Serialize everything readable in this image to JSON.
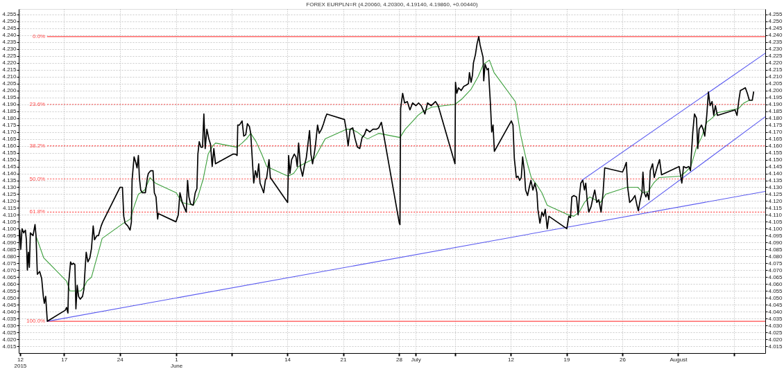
{
  "chart_data": {
    "type": "line",
    "title": "FOREX EURPLN=R (4.20060, 4.20300, 4.19140, 4.19860, +0.00440)",
    "xlim": [
      "2015-05-12T06:00",
      "2015-08-13T20:00"
    ],
    "ylim": [
      4.01,
      4.259
    ],
    "y2lim": [
      4.01,
      4.259
    ],
    "xticks": [
      {
        "value": "2015-05-12T10:00",
        "label": "12\n2015"
      },
      {
        "value": "2015-05-17T22:00",
        "label": "17"
      },
      {
        "value": "2015-05-24T22:00",
        "label": "24"
      },
      {
        "value": "2015-06-01T00:00",
        "label": "1\nJune"
      },
      {
        "value": "2015-06-07T22:00",
        "label": null
      },
      {
        "value": "2015-06-14T22:00",
        "label": "14"
      },
      {
        "value": "2015-06-21T22:00",
        "label": "21"
      },
      {
        "value": "2015-06-28T22:00",
        "label": "28"
      },
      {
        "value": "2015-07",
        "label": "July"
      },
      {
        "value": "2015-07-05T22:00",
        "label": null
      },
      {
        "value": "2015-07-12T22:00",
        "label": "12"
      },
      {
        "value": "2015-07-19T22:00",
        "label": "19"
      },
      {
        "value": "2015-07-26T22:00",
        "label": "26"
      },
      {
        "value": "2015-08-02T22:00",
        "label": "August"
      },
      {
        "value": "2015-08-09T22:00",
        "label": null
      }
    ],
    "yticks": [
      4.015,
      {
        "value": 4.02,
        "label": "4.020"
      },
      4.025,
      {
        "value": 4.03,
        "label": "4.030"
      },
      4.035,
      {
        "value": 4.04,
        "label": "4.040"
      },
      4.045,
      {
        "value": 4.05,
        "label": "4.050"
      },
      4.055,
      {
        "value": 4.06,
        "label": "4.060"
      },
      4.065,
      {
        "value": 4.07,
        "label": "4.070"
      },
      4.075,
      {
        "value": 4.08,
        "label": "4.080"
      },
      4.085,
      {
        "value": 4.09,
        "label": "4.090"
      },
      4.095,
      {
        "value": 4.1,
        "label": "4.100"
      },
      4.105,
      {
        "value": 4.11,
        "label": "4.110"
      },
      4.115,
      {
        "value": 4.12,
        "label": "4.120"
      },
      4.125,
      {
        "value": 4.13,
        "label": "4.130"
      },
      4.135,
      {
        "value": 4.14,
        "label": "4.140"
      },
      4.145,
      {
        "value": 4.15,
        "label": "4.150"
      },
      4.155,
      {
        "value": 4.16,
        "label": "4.160"
      },
      4.165,
      {
        "value": 4.17,
        "label": "4.170"
      },
      4.175,
      {
        "value": 4.18,
        "label": "4.180"
      },
      4.185,
      {
        "value": 4.19,
        "label": "4.190"
      },
      4.195,
      {
        "value": 4.2,
        "label": "4.200"
      },
      4.205,
      {
        "value": 4.21,
        "label": "4.210"
      },
      4.215,
      {
        "value": 4.22,
        "label": "4.220"
      },
      4.225,
      {
        "value": 4.23,
        "label": "4.230"
      },
      4.235,
      {
        "value": 4.24,
        "label": "4.240"
      },
      4.245,
      {
        "value": 4.25,
        "label": "4.250"
      },
      4.255
    ],
    "y2ticks": [
      4.015,
      {
        "value": 4.02,
        "label": "4.020"
      },
      4.025,
      {
        "value": 4.03,
        "label": "4.030"
      },
      4.035,
      {
        "value": 4.04,
        "label": "4.040"
      },
      4.045,
      {
        "value": 4.05,
        "label": "4.050"
      },
      4.055,
      {
        "value": 4.06,
        "label": "4.060"
      },
      4.065,
      {
        "value": 4.07,
        "label": "4.070"
      },
      4.075,
      {
        "value": 4.08,
        "label": "4.080"
      },
      4.085,
      {
        "value": 4.09,
        "label": "4.090"
      },
      4.095,
      {
        "value": 4.1,
        "label": "4.100"
      },
      4.105,
      {
        "value": 4.11,
        "label": "4.110"
      },
      4.115,
      {
        "value": 4.12,
        "label": "4.120"
      },
      4.125,
      {
        "value": 4.13,
        "label": "4.130"
      },
      4.135,
      {
        "value": 4.14,
        "label": "4.140"
      },
      4.145,
      {
        "value": 4.15,
        "label": "4.150"
      },
      4.155,
      {
        "value": 4.16,
        "label": "4.160"
      },
      4.165,
      {
        "value": 4.17,
        "label": "4.170"
      },
      4.175,
      {
        "value": 4.18,
        "label": "4.180"
      },
      4.185,
      {
        "value": 4.19,
        "label": "4.190"
      },
      4.195,
      {
        "value": 4.2,
        "label": "4.200"
      },
      4.205,
      {
        "value": 4.21,
        "label": "4.210"
      },
      4.215,
      {
        "value": 4.22,
        "label": "4.220"
      },
      4.225,
      {
        "value": 4.23,
        "label": "4.230"
      },
      4.235,
      {
        "value": 4.24,
        "label": "4.240"
      },
      4.245,
      {
        "value": 4.25,
        "label": "4.250"
      },
      4.255
    ],
    "grid": true,
    "series": [
      {
        "name": "0.0%",
        "color": "#ff4a4a",
        "line_style": "solid",
        "x": [
          "2015-05-15T20:00",
          "2015-08-13T20:00"
        ],
        "values": [
          4.239,
          4.239
        ]
      },
      {
        "name": "23.6%",
        "color": "#ff4a4a",
        "line_style": "dotted",
        "x": [
          "2015-05-15T20:00",
          "2015-08-13T20:00"
        ],
        "values": [
          4.19,
          4.19
        ]
      },
      {
        "name": "38.2%",
        "color": "#ff4a4a",
        "line_style": "dotted",
        "x": [
          "2015-05-15T20:00",
          "2015-08-13T20:00"
        ],
        "values": [
          4.16,
          4.16
        ]
      },
      {
        "name": "50.0%",
        "color": "#ff4a4a",
        "line_style": "dotted",
        "x": [
          "2015-05-15T20:00",
          "2015-08-13T20:00"
        ],
        "values": [
          4.136,
          4.136
        ]
      },
      {
        "name": "61.8%",
        "color": "#ff4a4a",
        "line_style": "dotted",
        "x": [
          "2015-05-15T20:00",
          "2015-08-13T20:00"
        ],
        "values": [
          4.112,
          4.112
        ]
      },
      {
        "name": "100.0%",
        "color": "#ff4a4a",
        "line_style": "solid",
        "x": [
          "2015-05-15T20:00",
          "2015-08-13T20:00"
        ],
        "values": [
          4.033,
          4.033
        ]
      },
      {
        "color": "#3a9e3a",
        "x": [
          "2015-05-14T11:00",
          "2015-05-15T09:00",
          "2015-05-18T06:00",
          "2015-05-18T16:00",
          "2015-05-19T09:00",
          "2015-05-20T01:00",
          "2015-05-20T11:00",
          "2015-05-20T19:00",
          "2015-05-21T09:00",
          "2015-05-22T01:00",
          "2015-05-22T17:00",
          "2015-05-25T09:00",
          "2015-05-26T06:00",
          "2015-05-26T17:00",
          "2015-05-27T06:00",
          "2015-05-28T01:00",
          "2015-05-28T17:00",
          "2015-05-29T09:00",
          "2015-06-01T00:00",
          "2015-06-01T17:00",
          "2015-06-02T09:00",
          "2015-06-03T03:00",
          "2015-06-03T17:00",
          "2015-06-04T09:00",
          "2015-06-05T00:00",
          "2015-06-05T14:00",
          "2015-06-05T22:00",
          "2015-06-08T14:00",
          "2015-06-09T06:00",
          "2015-06-09T19:00",
          "2015-06-10T08:00",
          "2015-06-11T00:00",
          "2015-06-11T17:00",
          "2015-06-12T08:00",
          "2015-06-15T00:00",
          "2015-06-15T17:00",
          "2015-06-16T08:00",
          "2015-06-17T00:00",
          "2015-06-17T17:00",
          "2015-06-18T08:00",
          "2015-06-19T00:00",
          "2015-06-19T16:00",
          "2015-06-22T08:00",
          "2015-06-23T00:00",
          "2015-06-23T16:00",
          "2015-06-24T08:00",
          "2015-06-25T00:00",
          "2015-06-25T16:00",
          "2015-06-26T09:00",
          "2015-06-29T01:00",
          "2015-06-29T17:00",
          "2015-06-30T20:00",
          "2015-07-01T07:00",
          "2015-07-01T23:00",
          "2015-07-03T01:00",
          "2015-07-05T22:30",
          "2015-07-06T20:00",
          "2015-07-07T23:00",
          "2015-07-08T20:00",
          "2015-07-09T12:00",
          "2015-07-10T06:00",
          "2015-07-10T20:00",
          "2015-07-13T12:00",
          "2015-07-14T04:00",
          "2015-07-14T20:00",
          "2015-07-15T12:00",
          "2015-07-16T04:00",
          "2015-07-16T20:00",
          "2015-07-17T12:00",
          "2015-07-20T04:00",
          "2015-07-20T20:00",
          "2015-07-21T12:00",
          "2015-07-22T04:00",
          "2015-07-22T20:00",
          "2015-07-23T12:00",
          "2015-07-24T04:00",
          "2015-07-24T20:00",
          "2015-07-27T12:00",
          "2015-07-28T04:00",
          "2015-07-28T20:00",
          "2015-07-29T12:00",
          "2015-07-30T04:00",
          "2015-07-30T20:00",
          "2015-07-31T12:00",
          "2015-08-03T04:00",
          "2015-08-03T20:00",
          "2015-08-04T12:00",
          "2015-08-05T04:00",
          "2015-08-05T20:00",
          "2015-08-06T12:00",
          "2015-08-07T04:00",
          "2015-08-07T20:00",
          "2015-08-10T12:00",
          "2015-08-11T04:00",
          "2015-08-11T20:00",
          "2015-08-12T06:00"
        ],
        "values": [
          4.094,
          4.079,
          4.062,
          4.055,
          4.055,
          4.055,
          4.058,
          4.062,
          4.065,
          4.079,
          4.093,
          4.104,
          4.107,
          4.116,
          4.125,
          4.128,
          4.137,
          4.133,
          4.126,
          4.119,
          4.118,
          4.117,
          4.123,
          4.136,
          4.154,
          4.16,
          4.162,
          4.159,
          4.162,
          4.165,
          4.169,
          4.163,
          4.154,
          4.145,
          4.138,
          4.14,
          4.145,
          4.147,
          4.149,
          4.151,
          4.158,
          4.165,
          4.172,
          4.172,
          4.17,
          4.167,
          4.165,
          4.167,
          4.169,
          4.166,
          4.172,
          4.179,
          4.182,
          4.185,
          4.188,
          4.19,
          4.194,
          4.201,
          4.21,
          4.219,
          4.222,
          4.213,
          4.192,
          4.168,
          4.151,
          4.137,
          4.132,
          4.126,
          4.117,
          4.11,
          4.109,
          4.112,
          4.119,
          4.123,
          4.121,
          4.119,
          4.125,
          4.13,
          4.13,
          4.13,
          4.126,
          4.127,
          4.133,
          4.137,
          4.138,
          4.141,
          4.145,
          4.158,
          4.166,
          4.177,
          4.18,
          4.184,
          4.187,
          4.191,
          4.193,
          4.193
        ]
      },
      {
        "color": "#5a5af0",
        "x": [
          "2015-05-15T20:00",
          "2015-08-13T20:00"
        ],
        "values": [
          4.033,
          4.127
        ]
      },
      {
        "color": "#5a5af0",
        "x": [
          "2015-07-21T20:00",
          "2015-08-13T20:00"
        ],
        "values": [
          4.135,
          4.227
        ]
      },
      {
        "color": "#5a5af0",
        "x": [
          "2015-07-28T22:00",
          "2015-08-13T20:00"
        ],
        "values": [
          4.113,
          4.181
        ]
      },
      {
        "color": "#000000",
        "x": [
          "2015-05-12T07:00",
          "2015-05-12T09:00",
          "2015-05-12T12:00",
          "2015-05-12T16:00",
          "2015-05-12T21:00",
          "2015-05-13T02:00",
          "2015-05-13T05:00",
          "2015-05-13T08:00",
          "2015-05-13T11:00",
          "2015-05-13T14:00",
          "2015-05-13T17:00",
          "2015-05-14T01:00",
          "2015-05-14T07:00",
          "2015-05-14T10:00",
          "2015-05-14T14:00",
          "2015-05-14T21:00",
          "2015-05-15T03:00",
          "2015-05-15T08:00",
          "2015-05-15T11:00",
          "2015-05-15T15:00",
          "2015-05-15T20:00",
          "2015-05-18T02:00",
          "2015-05-18T06:00",
          "2015-05-18T10:00",
          "2015-05-18T12:00",
          "2015-05-18T18:00",
          "2015-05-18T22:00",
          "2015-05-19T02:00",
          "2015-05-19T07:00",
          "2015-05-19T10:00",
          "2015-05-19T14:00",
          "2015-05-19T18:00",
          "2015-05-19T23:00",
          "2015-05-20T06:00",
          "2015-05-20T10:00",
          "2015-05-20T14:00",
          "2015-05-20T17:00",
          "2015-05-20T22:00",
          "2015-05-21T04:00",
          "2015-05-21T09:00",
          "2015-05-21T14:00",
          "2015-05-21T18:00",
          "2015-05-22T01:00",
          "2015-05-22T06:00",
          "2015-05-22T14:00",
          "2015-05-22T19:00",
          "2015-05-24T23:00",
          "2015-05-25T06:00",
          "2015-05-25T10:00",
          "2015-05-25T14:00",
          "2015-05-25T22:00",
          "2015-05-26T05:00",
          "2015-05-26T09:00",
          "2015-05-26T11:00",
          "2015-05-26T17:00",
          "2015-05-26T22:00",
          "2015-05-27T02:00",
          "2015-05-27T06:00",
          "2015-05-27T09:00",
          "2015-05-27T13:00",
          "2015-05-27T18:00",
          "2015-05-28T03:00",
          "2015-05-28T09:00",
          "2015-05-28T12:00",
          "2015-05-28T19:00",
          "2015-05-29T02:00",
          "2015-05-29T06:00",
          "2015-05-29T11:00",
          "2015-05-29T16:00",
          "2015-05-29T18:00",
          "2015-05-31T23:00",
          "2015-06-01T06:00",
          "2015-06-01T11:00",
          "2015-06-01T18:00",
          "2015-06-01T23:00",
          "2015-06-02T06:00",
          "2015-06-02T10:00",
          "2015-06-02T14:00",
          "2015-06-02T19:00",
          "2015-06-03T03:00",
          "2015-06-03T09:00",
          "2015-06-03T14:00",
          "2015-06-03T17:00",
          "2015-06-03T21:00",
          "2015-06-04T02:00",
          "2015-06-04T07:00",
          "2015-06-04T11:00",
          "2015-06-04T15:00",
          "2015-06-04T20:00",
          "2015-06-05T02:00",
          "2015-06-05T07:00",
          "2015-06-05T12:00",
          "2015-06-05T17:00",
          "2015-06-05T22:00",
          "2015-06-08T03:00",
          "2015-06-08T10:00",
          "2015-06-08T15:00",
          "2015-06-08T17:00",
          "2015-06-08T22:00",
          "2015-06-09T06:00",
          "2015-06-09T11:00",
          "2015-06-09T17:00",
          "2015-06-09T22:00",
          "2015-06-10T04:00",
          "2015-06-10T08:00",
          "2015-06-10T14:00",
          "2015-06-10T17:00",
          "2015-06-10T22:00",
          "2015-06-11T03:00",
          "2015-06-11T08:00",
          "2015-06-11T12:00",
          "2015-06-11T17:00",
          "2015-06-11T23:00",
          "2015-06-12T04:00",
          "2015-06-12T08:00",
          "2015-06-12T15:00",
          "2015-06-12T19:00",
          "2015-06-14T23:00",
          "2015-06-15T02:00",
          "2015-06-15T06:00",
          "2015-06-15T11:00",
          "2015-06-15T19:00",
          "2015-06-16T00:00",
          "2015-06-16T04:00",
          "2015-06-16T08:00",
          "2015-06-16T14:00",
          "2015-06-16T20:00",
          "2015-06-17T01:00",
          "2015-06-17T07:00",
          "2015-06-17T12:00",
          "2015-06-17T17:00",
          "2015-06-17T21:00",
          "2015-06-18T02:00",
          "2015-06-18T07:00",
          "2015-06-18T11:00",
          "2015-06-18T17:00",
          "2015-06-18T22:00",
          "2015-06-19T05:00",
          "2015-06-19T11:00",
          "2015-06-19T16:00",
          "2015-06-19T21:00",
          "2015-06-22T02:00",
          "2015-06-22T07:00",
          "2015-06-22T13:00",
          "2015-06-22T19:00",
          "2015-06-23T03:00",
          "2015-06-23T10:00",
          "2015-06-23T17:00",
          "2015-06-24T00:00",
          "2015-06-24T07:00",
          "2015-06-24T14:00",
          "2015-06-24T20:00",
          "2015-06-25T06:00",
          "2015-06-25T16:00",
          "2015-06-26T02:00",
          "2015-06-26T09:00",
          "2015-06-26T17:00",
          "2015-06-26T21:00",
          "2015-06-28T23:00",
          "2015-06-29T01:00",
          "2015-06-29T03:00",
          "2015-06-29T09:00",
          "2015-06-29T15:00",
          "2015-06-29T23:00",
          "2015-06-30T07:00",
          "2015-06-30T15:00",
          "2015-07-01T01:00",
          "2015-07-01T09:00",
          "2015-07-01T17:00",
          "2015-07-02T04:00",
          "2015-07-02T12:00",
          "2015-07-02T23:00",
          "2015-07-03T12:00",
          "2015-07-03T20:00",
          "2015-07-05T22:30",
          "2015-07-06T00:00",
          "2015-07-06T04:00",
          "2015-07-06T09:00",
          "2015-07-06T17:00",
          "2015-07-07T01:00",
          "2015-07-07T09:00",
          "2015-07-07T15:00",
          "2015-07-07T18:00",
          "2015-07-07T23:00",
          "2015-07-08T03:00",
          "2015-07-08T06:00",
          "2015-07-08T12:00",
          "2015-07-08T17:00",
          "2015-07-08T22:00",
          "2015-07-09T02:00",
          "2015-07-09T06:00",
          "2015-07-09T11:00",
          "2015-07-09T13:00",
          "2015-07-09T17:00",
          "2015-07-09T23:00",
          "2015-07-10T03:00",
          "2015-07-10T06:00",
          "2015-07-10T09:00",
          "2015-07-10T13:00",
          "2015-07-10T17:00",
          "2015-07-10T21:00",
          "2015-07-13T00:00",
          "2015-07-13T05:00",
          "2015-07-13T09:00",
          "2015-07-13T15:00",
          "2015-07-13T20:00",
          "2015-07-14T01:00",
          "2015-07-14T06:00",
          "2015-07-14T10:00",
          "2015-07-14T15:00",
          "2015-07-14T19:00",
          "2015-07-15T01:00",
          "2015-07-15T06:00",
          "2015-07-15T11:00",
          "2015-07-15T17:00",
          "2015-07-15T23:00",
          "2015-07-16T05:00",
          "2015-07-16T08:00",
          "2015-07-16T14:00",
          "2015-07-16T20:00",
          "2015-07-17T01:00",
          "2015-07-17T06:00",
          "2015-07-17T12:00",
          "2015-07-17T17:00",
          "2015-07-19T23:00",
          "2015-07-20T05:00",
          "2015-07-20T10:00",
          "2015-07-20T14:00",
          "2015-07-20T20:00",
          "2015-07-21T04:00",
          "2015-07-21T09:00",
          "2015-07-21T13:00",
          "2015-07-21T17:00",
          "2015-07-21T23:00",
          "2015-07-22T04:00",
          "2015-07-22T08:00",
          "2015-07-22T12:00",
          "2015-07-22T17:00",
          "2015-07-23T00:00",
          "2015-07-23T06:00",
          "2015-07-23T11:00",
          "2015-07-23T17:00",
          "2015-07-23T23:00",
          "2015-07-24T06:00",
          "2015-07-24T12:00",
          "2015-07-24T17:00",
          "2015-07-26T22:30",
          "2015-07-27T04:00",
          "2015-07-27T10:00",
          "2015-07-27T14:00",
          "2015-07-27T20:00",
          "2015-07-28T04:00",
          "2015-07-28T12:00",
          "2015-07-28T17:00",
          "2015-07-28T22:00",
          "2015-07-29T04:00",
          "2015-07-29T09:00",
          "2015-07-29T12:00",
          "2015-07-29T16:00",
          "2015-07-29T21:00",
          "2015-07-30T01:00",
          "2015-07-30T06:00",
          "2015-07-30T10:00",
          "2015-07-30T17:00",
          "2015-07-30T22:00",
          "2015-07-31T06:00",
          "2015-07-31T14:00",
          "2015-07-31T20:00",
          "2015-08-03T01:00",
          "2015-08-03T09:00",
          "2015-08-03T14:00",
          "2015-08-03T22:00",
          "2015-08-04T06:00",
          "2015-08-04T11:00",
          "2015-08-04T13:00",
          "2015-08-04T18:00",
          "2015-08-04T23:00",
          "2015-08-05T05:00",
          "2015-08-05T09:00",
          "2015-08-05T13:00",
          "2015-08-05T20:00",
          "2015-08-06T01:00",
          "2015-08-06T06:00",
          "2015-08-06T12:00",
          "2015-08-06T17:00",
          "2015-08-06T22:00",
          "2015-08-07T04:00",
          "2015-08-07T09:00",
          "2015-08-07T14:00",
          "2015-08-07T20:00",
          "2015-08-10T01:00",
          "2015-08-10T07:00",
          "2015-08-10T12:00",
          "2015-08-10T17:00",
          "2015-08-11T01:00",
          "2015-08-11T08:00",
          "2015-08-11T14:00",
          "2015-08-11T20:00",
          "2015-08-12T01:00",
          "2015-08-12T05:00",
          "2015-08-12T09:00"
        ],
        "values": [
          4.095,
          4.099,
          4.085,
          4.1,
          4.097,
          4.099,
          4.092,
          4.07,
          4.083,
          4.072,
          4.097,
          4.095,
          4.103,
          4.095,
          4.067,
          4.069,
          4.064,
          4.051,
          4.046,
          4.051,
          4.033,
          4.041,
          4.043,
          4.039,
          4.06,
          4.076,
          4.074,
          4.075,
          4.074,
          4.042,
          4.059,
          4.051,
          4.049,
          4.051,
          4.056,
          4.072,
          4.083,
          4.076,
          4.079,
          4.086,
          4.102,
          4.092,
          4.095,
          4.095,
          4.102,
          4.105,
          4.13,
          4.13,
          4.109,
          4.104,
          4.102,
          4.099,
          4.105,
          4.135,
          4.152,
          4.148,
          4.144,
          4.153,
          4.137,
          4.128,
          4.126,
          4.126,
          4.137,
          4.14,
          4.142,
          4.142,
          4.126,
          4.123,
          4.107,
          4.111,
          4.105,
          4.11,
          4.126,
          4.119,
          4.116,
          4.112,
          4.135,
          4.123,
          4.118,
          4.117,
          4.126,
          4.129,
          4.154,
          4.163,
          4.159,
          4.159,
          4.183,
          4.158,
          4.172,
          4.165,
          4.161,
          4.145,
          4.158,
          4.147,
          4.154,
          4.154,
          4.153,
          4.175,
          4.175,
          4.178,
          4.167,
          4.168,
          4.176,
          4.174,
          4.169,
          4.145,
          4.133,
          4.142,
          4.137,
          4.147,
          4.133,
          4.13,
          4.126,
          4.135,
          4.137,
          4.15,
          4.137,
          4.119,
          4.153,
          4.14,
          4.15,
          4.154,
          4.152,
          4.145,
          4.162,
          4.144,
          4.138,
          4.145,
          4.151,
          4.161,
          4.171,
          4.154,
          4.147,
          4.154,
          4.161,
          4.175,
          4.169,
          4.172,
          4.176,
          4.18,
          4.183,
          4.179,
          4.172,
          4.16,
          4.172,
          4.173,
          4.165,
          4.159,
          4.158,
          4.166,
          4.168,
          4.172,
          4.17,
          4.172,
          4.172,
          4.173,
          4.177,
          4.172,
          4.104,
          4.103,
          4.187,
          4.198,
          4.191,
          4.192,
          4.186,
          4.191,
          4.189,
          4.191,
          4.189,
          4.183,
          4.191,
          4.189,
          4.192,
          4.189,
          4.147,
          4.206,
          4.198,
          4.202,
          4.2,
          4.203,
          4.204,
          4.205,
          4.213,
          4.206,
          4.211,
          4.22,
          4.226,
          4.234,
          4.239,
          4.233,
          4.229,
          4.224,
          4.207,
          4.219,
          4.215,
          4.216,
          4.203,
          4.191,
          4.17,
          4.175,
          4.156,
          4.178,
          4.175,
          4.151,
          4.137,
          4.138,
          4.135,
          4.137,
          4.152,
          4.142,
          4.128,
          4.124,
          4.13,
          4.135,
          4.128,
          4.133,
          4.126,
          4.114,
          4.104,
          4.112,
          4.109,
          4.114,
          4.1,
          4.109,
          4.1,
          4.109,
          4.108,
          4.123,
          4.124,
          4.123,
          4.11,
          4.124,
          4.133,
          4.135,
          4.128,
          4.133,
          4.121,
          4.112,
          4.116,
          4.123,
          4.128,
          4.119,
          4.121,
          4.112,
          4.126,
          4.144,
          4.141,
          4.144,
          4.148,
          4.13,
          4.119,
          4.121,
          4.124,
          4.118,
          4.113,
          4.121,
          4.126,
          4.141,
          4.126,
          4.123,
          4.126,
          4.121,
          4.142,
          4.147,
          4.137,
          4.144,
          4.15,
          4.139,
          4.145,
          4.133,
          4.145,
          4.144,
          4.145,
          4.142,
          4.151,
          4.17,
          4.183,
          4.18,
          4.158,
          4.172,
          4.175,
          4.172,
          4.167,
          4.182,
          4.199,
          4.189,
          4.192,
          4.182,
          4.189,
          4.182,
          4.186,
          4.182,
          4.192,
          4.2,
          4.201,
          4.202,
          4.198,
          4.193,
          4.193,
          4.193,
          4.199
        ]
      }
    ]
  }
}
